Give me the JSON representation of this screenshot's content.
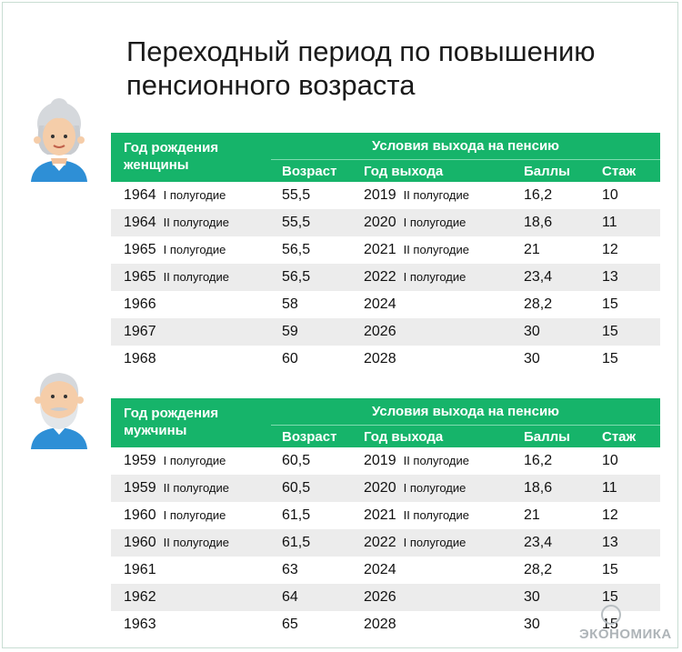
{
  "title": {
    "line1": "Переходный период по повышению",
    "line2": "пенсионного возраста"
  },
  "colors": {
    "header_green": "#16b46a",
    "row_alt": "#ececec"
  },
  "women": {
    "icon": "grandmother-avatar-icon",
    "header": {
      "birth_label": "Год рождения женщины",
      "conditions": "Условия выхода на пенсию",
      "age": "Возраст",
      "year": "Год выхода",
      "points": "Баллы",
      "experience": "Стаж"
    },
    "rows": [
      {
        "birth": "1964",
        "birth_half": "I полугодие",
        "age": "55,5",
        "year": "2019",
        "year_half": "II полугодие",
        "points": "16,2",
        "exp": "10"
      },
      {
        "birth": "1964",
        "birth_half": "II полугодие",
        "age": "55,5",
        "year": "2020",
        "year_half": "I полугодие",
        "points": "18,6",
        "exp": "11"
      },
      {
        "birth": "1965",
        "birth_half": "I полугодие",
        "age": "56,5",
        "year": "2021",
        "year_half": "II полугодие",
        "points": "21",
        "exp": "12"
      },
      {
        "birth": "1965",
        "birth_half": "II полугодие",
        "age": "56,5",
        "year": "2022",
        "year_half": "I полугодие",
        "points": "23,4",
        "exp": "13"
      },
      {
        "birth": "1966",
        "birth_half": "",
        "age": "58",
        "year": "2024",
        "year_half": "",
        "points": "28,2",
        "exp": "15"
      },
      {
        "birth": "1967",
        "birth_half": "",
        "age": "59",
        "year": "2026",
        "year_half": "",
        "points": "30",
        "exp": "15"
      },
      {
        "birth": "1968",
        "birth_half": "",
        "age": "60",
        "year": "2028",
        "year_half": "",
        "points": "30",
        "exp": "15"
      }
    ]
  },
  "men": {
    "icon": "grandfather-avatar-icon",
    "header": {
      "birth_label": "Год рождения мужчины",
      "conditions": "Условия выхода на пенсию",
      "age": "Возраст",
      "year": "Год выхода",
      "points": "Баллы",
      "experience": "Стаж"
    },
    "rows": [
      {
        "birth": "1959",
        "birth_half": "I полугодие",
        "age": "60,5",
        "year": "2019",
        "year_half": "II полугодие",
        "points": "16,2",
        "exp": "10"
      },
      {
        "birth": "1959",
        "birth_half": "II полугодие",
        "age": "60,5",
        "year": "2020",
        "year_half": "I полугодие",
        "points": "18,6",
        "exp": "11"
      },
      {
        "birth": "1960",
        "birth_half": "I полугодие",
        "age": "61,5",
        "year": "2021",
        "year_half": "II полугодие",
        "points": "21",
        "exp": "12"
      },
      {
        "birth": "1960",
        "birth_half": "II полугодие",
        "age": "61,5",
        "year": "2022",
        "year_half": "I полугодие",
        "points": "23,4",
        "exp": "13"
      },
      {
        "birth": "1961",
        "birth_half": "",
        "age": "63",
        "year": "2024",
        "year_half": "",
        "points": "28,2",
        "exp": "15"
      },
      {
        "birth": "1962",
        "birth_half": "",
        "age": "64",
        "year": "2026",
        "year_half": "",
        "points": "30",
        "exp": "15"
      },
      {
        "birth": "1963",
        "birth_half": "",
        "age": "65",
        "year": "2028",
        "year_half": "",
        "points": "30",
        "exp": "15"
      }
    ]
  },
  "watermark": {
    "text": "ЭКОНОМИКА"
  }
}
